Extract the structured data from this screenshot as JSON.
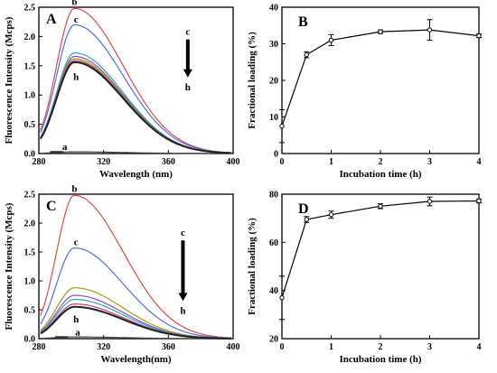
{
  "chart_data": [
    {
      "id": "A",
      "type": "line",
      "panel_label": "A",
      "xlabel": "Wavelength (nm)",
      "ylabel": "Fluorescence Intensity (Mcps)",
      "xlim": [
        280,
        400
      ],
      "ylim": [
        0,
        2.5
      ],
      "xticks": [
        "280",
        "320",
        "360",
        "400"
      ],
      "yticks": [
        "0.0",
        "0.5",
        "1.0",
        "1.5",
        "2.0",
        "2.5"
      ],
      "peak_x": 302,
      "series": [
        {
          "name": "a",
          "color": "#404040",
          "peak": 0.03
        },
        {
          "name": "b",
          "color": "#e04848",
          "peak": 2.48
        },
        {
          "name": "c",
          "color": "#4a6fe3",
          "peak": 2.2
        },
        {
          "name": "",
          "color": "#2aa8a8",
          "peak": 1.72
        },
        {
          "name": "",
          "color": "#8a4ad6",
          "peak": 1.66
        },
        {
          "name": "",
          "color": "#a0a000",
          "peak": 1.62
        },
        {
          "name": "",
          "color": "#c04080",
          "peak": 1.59
        },
        {
          "name": "h",
          "color": "#202020",
          "peak": 1.56
        }
      ],
      "curve_labels": [
        {
          "text": "b",
          "x": 302,
          "y": 2.6
        },
        {
          "text": "c",
          "x": 303,
          "y": 2.3
        },
        {
          "text": "h",
          "x": 303,
          "y": 1.32
        },
        {
          "text": "a",
          "x": 296,
          "y": 0.12
        }
      ],
      "arrow": {
        "from_label": "c",
        "to_label": "h",
        "x": 372,
        "y_from": 1.95,
        "y_to": 1.3
      },
      "baseline_marker": {
        "x1": 287,
        "x2": 295
      }
    },
    {
      "id": "B",
      "type": "line",
      "panel_label": "B",
      "xlabel": "Incubation time (h)",
      "ylabel": "Fractional loading (%)",
      "xlim": [
        0,
        4
      ],
      "ylim": [
        0,
        40
      ],
      "xticks": [
        "0",
        "1",
        "2",
        "3",
        "4"
      ],
      "yticks": [
        "0",
        "10",
        "20",
        "30",
        "40"
      ],
      "series": [
        {
          "name": "",
          "x": [
            0,
            0.5,
            1,
            2,
            3,
            4
          ],
          "y": [
            7.5,
            27,
            31,
            33.3,
            33.8,
            32.2
          ],
          "err": [
            4.5,
            0.8,
            1.5,
            0.5,
            2.8,
            0.5
          ]
        }
      ]
    },
    {
      "id": "C",
      "type": "line",
      "panel_label": "C",
      "xlabel": "Wavelength(nm)",
      "ylabel": "Fluorescence Intensity (Mcps)",
      "xlim": [
        280,
        400
      ],
      "ylim": [
        0,
        2.5
      ],
      "xticks": [
        "280",
        "320",
        "360",
        "400"
      ],
      "yticks": [
        "0.0",
        "0.5",
        "1.0",
        "1.5",
        "2.0",
        "2.5"
      ],
      "peak_x": 302,
      "series": [
        {
          "name": "a",
          "color": "#404040",
          "peak": 0.03
        },
        {
          "name": "b",
          "color": "#e04848",
          "peak": 2.48
        },
        {
          "name": "c",
          "color": "#4a6fe3",
          "peak": 1.57
        },
        {
          "name": "",
          "color": "#a0a000",
          "peak": 0.88
        },
        {
          "name": "",
          "color": "#8a4ad6",
          "peak": 0.75
        },
        {
          "name": "",
          "color": "#2aa8a8",
          "peak": 0.68
        },
        {
          "name": "",
          "color": "#c04080",
          "peak": 0.6
        },
        {
          "name": "h",
          "color": "#202020",
          "peak": 0.55
        }
      ],
      "curve_labels": [
        {
          "text": "b",
          "x": 302,
          "y": 2.6
        },
        {
          "text": "c",
          "x": 303,
          "y": 1.68
        },
        {
          "text": "h",
          "x": 303,
          "y": 0.34
        },
        {
          "text": "a",
          "x": 304,
          "y": 0.12
        }
      ],
      "arrow": {
        "from_label": "c",
        "to_label": "h",
        "x": 369,
        "y_from": 1.7,
        "y_to": 0.65
      },
      "baseline_marker": {
        "x1": 290,
        "x2": 298
      }
    },
    {
      "id": "D",
      "type": "line",
      "panel_label": "D",
      "xlabel": "Incubation time (h)",
      "ylabel": "Fractional loading (%)",
      "xlim": [
        0,
        4
      ],
      "ylim": [
        20,
        80
      ],
      "xticks": [
        "0",
        "1",
        "2",
        "3",
        "4"
      ],
      "yticks": [
        "20",
        "40",
        "60",
        "80"
      ],
      "series": [
        {
          "name": "",
          "x": [
            0,
            0.5,
            1,
            2,
            3,
            4
          ],
          "y": [
            37,
            69.5,
            71.5,
            75,
            77,
            77.2
          ],
          "err": [
            9,
            1.2,
            1.5,
            1,
            1.8,
            0.8
          ]
        }
      ]
    }
  ]
}
